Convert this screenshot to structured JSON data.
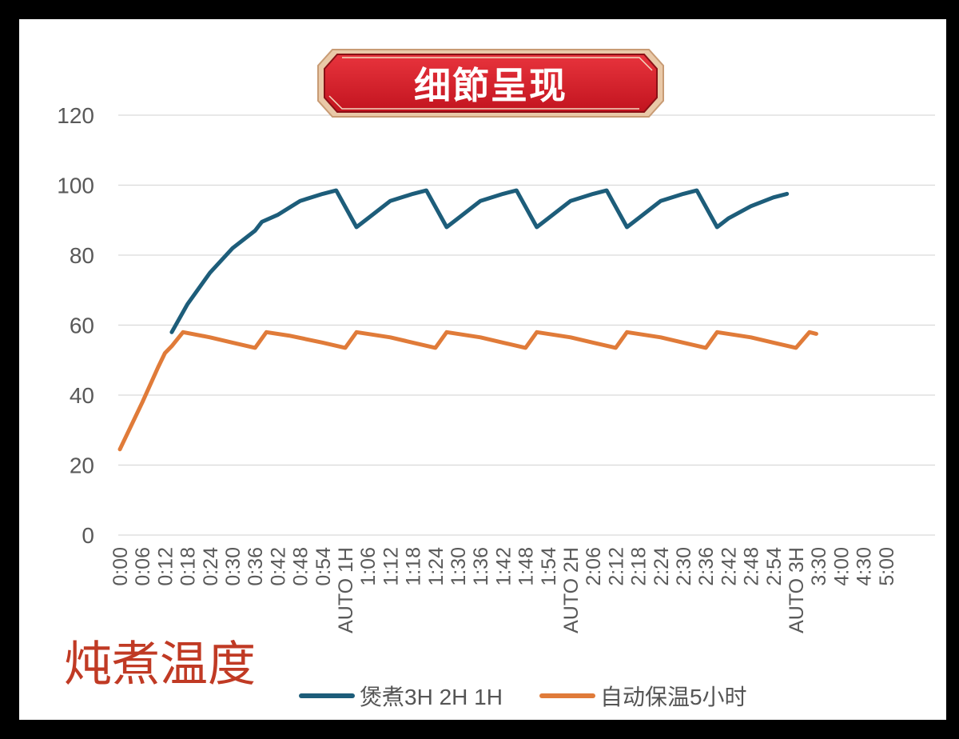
{
  "banner": {
    "title": "细節呈现"
  },
  "caption": "炖煮温度",
  "colors": {
    "background": "#000000",
    "banner_red": "#d81e2a",
    "banner_border": "#e9c9a8",
    "caption_red": "#c03a24",
    "series_teal": "#1d5d7a",
    "series_orange": "#e07b39",
    "grid": "#d9d9d9",
    "axis_text": "#595959"
  },
  "chart_data": {
    "type": "line",
    "title": "",
    "xlabel": "",
    "ylabel": "",
    "ylim": [
      0,
      120
    ],
    "yticks": [
      0,
      20,
      40,
      60,
      80,
      100,
      120
    ],
    "grid": true,
    "legend_position": "bottom",
    "categories": [
      "0:00",
      "0:06",
      "0:12",
      "0:18",
      "0:24",
      "0:30",
      "0:36",
      "0:42",
      "0:48",
      "0:54",
      "AUTO 1H",
      "1:06",
      "1:12",
      "1:18",
      "1:24",
      "1:30",
      "1:36",
      "1:42",
      "1:48",
      "1:54",
      "AUTO 2H",
      "2:06",
      "2:12",
      "2:18",
      "2:24",
      "2:30",
      "2:36",
      "2:42",
      "2:48",
      "2:54",
      "AUTO 3H",
      "3:30",
      "4:00",
      "4:30",
      "5:00"
    ],
    "series": [
      {
        "name": "煲煮3H 2H 1H",
        "color": "#1d5d7a",
        "points": [
          [
            2.3,
            58
          ],
          [
            3,
            66
          ],
          [
            4,
            75
          ],
          [
            5,
            82
          ],
          [
            6,
            87
          ],
          [
            6.3,
            89.5
          ],
          [
            7,
            91.5
          ],
          [
            8,
            95.5
          ],
          [
            9,
            97.5
          ],
          [
            9.6,
            98.5
          ],
          [
            10.5,
            88
          ],
          [
            11,
            90.5
          ],
          [
            12,
            95.5
          ],
          [
            13,
            97.5
          ],
          [
            13.6,
            98.5
          ],
          [
            14.5,
            88
          ],
          [
            15,
            90.5
          ],
          [
            16,
            95.5
          ],
          [
            17,
            97.5
          ],
          [
            17.6,
            98.5
          ],
          [
            18.5,
            88
          ],
          [
            19,
            90.5
          ],
          [
            20,
            95.5
          ],
          [
            21,
            97.5
          ],
          [
            21.6,
            98.5
          ],
          [
            22.5,
            88
          ],
          [
            23,
            90.5
          ],
          [
            24,
            95.5
          ],
          [
            25,
            97.5
          ],
          [
            25.6,
            98.5
          ],
          [
            26.5,
            88
          ],
          [
            27,
            90.5
          ],
          [
            28,
            94
          ],
          [
            29,
            96.5
          ],
          [
            29.6,
            97.5
          ]
        ]
      },
      {
        "name": "自动保温5小时",
        "color": "#e07b39",
        "points": [
          [
            0,
            24.5
          ],
          [
            1,
            38
          ],
          [
            1.7,
            48
          ],
          [
            2,
            52
          ],
          [
            2.3,
            54
          ],
          [
            2.8,
            58
          ],
          [
            4,
            56.5
          ],
          [
            5,
            55
          ],
          [
            6,
            53.5
          ],
          [
            6.5,
            58
          ],
          [
            7.5,
            57
          ],
          [
            9,
            55
          ],
          [
            10,
            53.5
          ],
          [
            10.5,
            58
          ],
          [
            12,
            56.5
          ],
          [
            13,
            55
          ],
          [
            14,
            53.5
          ],
          [
            14.5,
            58
          ],
          [
            16,
            56.5
          ],
          [
            17,
            55
          ],
          [
            18,
            53.5
          ],
          [
            18.5,
            58
          ],
          [
            20,
            56.5
          ],
          [
            21,
            55
          ],
          [
            22,
            53.5
          ],
          [
            22.5,
            58
          ],
          [
            24,
            56.5
          ],
          [
            25,
            55
          ],
          [
            26,
            53.5
          ],
          [
            26.5,
            58
          ],
          [
            28,
            56.5
          ],
          [
            29,
            55
          ],
          [
            30,
            53.5
          ],
          [
            30.6,
            58
          ],
          [
            30.9,
            57.5
          ]
        ]
      }
    ]
  }
}
